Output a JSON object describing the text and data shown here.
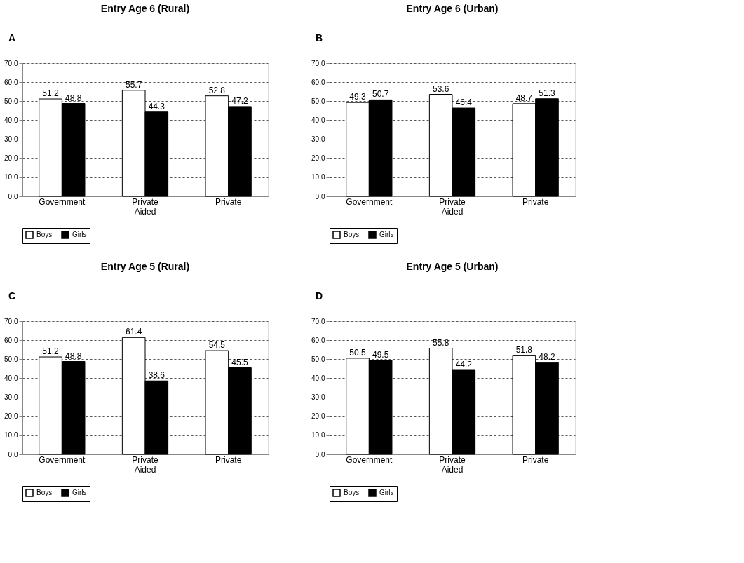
{
  "chart_data": [
    {
      "type": "bar",
      "title": "Entry Age 6 (Rural)",
      "annotations": [
        "A"
      ],
      "categories": [
        "Government",
        "Private Aided",
        "Private"
      ],
      "series": [
        {
          "name": "Boys",
          "color": "#ffffff",
          "values": [
            51.2,
            55.7,
            52.8
          ]
        },
        {
          "name": "Girls",
          "color": "#000000",
          "values": [
            48.8,
            44.3,
            47.2
          ]
        }
      ],
      "ylim": [
        0,
        70
      ],
      "yticks": [
        {
          "value": 0,
          "label": "0.0"
        },
        {
          "value": 10,
          "label": "10.0"
        },
        {
          "value": 20,
          "label": "20.0"
        },
        {
          "value": 30,
          "label": "30.0"
        },
        {
          "value": 40,
          "label": "40.0"
        },
        {
          "value": 50,
          "label": "50.0"
        },
        {
          "value": 60,
          "label": "60.0"
        },
        {
          "value": 70,
          "label": "70.0"
        }
      ],
      "grid": "y",
      "legend": "bottom",
      "data_labels": true
    },
    {
      "type": "bar",
      "title": "Entry Age 6 (Urban)",
      "annotations": [
        "B"
      ],
      "categories": [
        "Government",
        "Private Aided",
        "Private"
      ],
      "series": [
        {
          "name": "Boys",
          "color": "#ffffff",
          "values": [
            49.3,
            53.6,
            48.7
          ]
        },
        {
          "name": "Girls",
          "color": "#000000",
          "values": [
            50.7,
            46.4,
            51.3
          ]
        }
      ],
      "ylim": [
        0,
        70
      ],
      "yticks": [
        {
          "value": 0,
          "label": "0.0"
        },
        {
          "value": 10,
          "label": "10.0"
        },
        {
          "value": 20,
          "label": "20.0"
        },
        {
          "value": 30,
          "label": "30.0"
        },
        {
          "value": 40,
          "label": "40.0"
        },
        {
          "value": 50,
          "label": "50.0"
        },
        {
          "value": 60,
          "label": "60.0"
        },
        {
          "value": 70,
          "label": "70.0"
        }
      ],
      "grid": "y",
      "legend": "bottom",
      "data_labels": true
    },
    {
      "type": "bar",
      "title": "Entry Age 5 (Rural)",
      "annotations": [
        "C"
      ],
      "categories": [
        "Government",
        "Private Aided",
        "Private"
      ],
      "series": [
        {
          "name": "Boys",
          "color": "#ffffff",
          "values": [
            51.2,
            61.4,
            54.5
          ]
        },
        {
          "name": "Girls",
          "color": "#000000",
          "values": [
            48.8,
            38.6,
            45.5
          ]
        }
      ],
      "ylim": [
        0,
        70
      ],
      "yticks": [
        {
          "value": 0,
          "label": "0.0"
        },
        {
          "value": 10,
          "label": "10.0"
        },
        {
          "value": 20,
          "label": "20.0"
        },
        {
          "value": 30,
          "label": "30.0"
        },
        {
          "value": 40,
          "label": "40.0"
        },
        {
          "value": 50,
          "label": "50.0"
        },
        {
          "value": 60,
          "label": "60.0"
        },
        {
          "value": 70,
          "label": "70.0"
        }
      ],
      "grid": "y",
      "legend": "bottom",
      "data_labels": true
    },
    {
      "type": "bar",
      "title": "Entry Age 5 (Urban)",
      "annotations": [
        "D"
      ],
      "categories": [
        "Government",
        "Private Aided",
        "Private"
      ],
      "series": [
        {
          "name": "Boys",
          "color": "#ffffff",
          "values": [
            50.5,
            55.8,
            51.8
          ]
        },
        {
          "name": "Girls",
          "color": "#000000",
          "values": [
            49.5,
            44.2,
            48.2
          ]
        }
      ],
      "ylim": [
        0,
        70
      ],
      "yticks": [
        {
          "value": 0,
          "label": "0.0"
        },
        {
          "value": 10,
          "label": "10.0"
        },
        {
          "value": 20,
          "label": "20.0"
        },
        {
          "value": 30,
          "label": "30.0"
        },
        {
          "value": 40,
          "label": "40.0"
        },
        {
          "value": 50,
          "label": "50.0"
        },
        {
          "value": 60,
          "label": "60.0"
        },
        {
          "value": 70,
          "label": "70.0"
        }
      ],
      "grid": "y",
      "legend": "bottom",
      "data_labels": true
    }
  ]
}
